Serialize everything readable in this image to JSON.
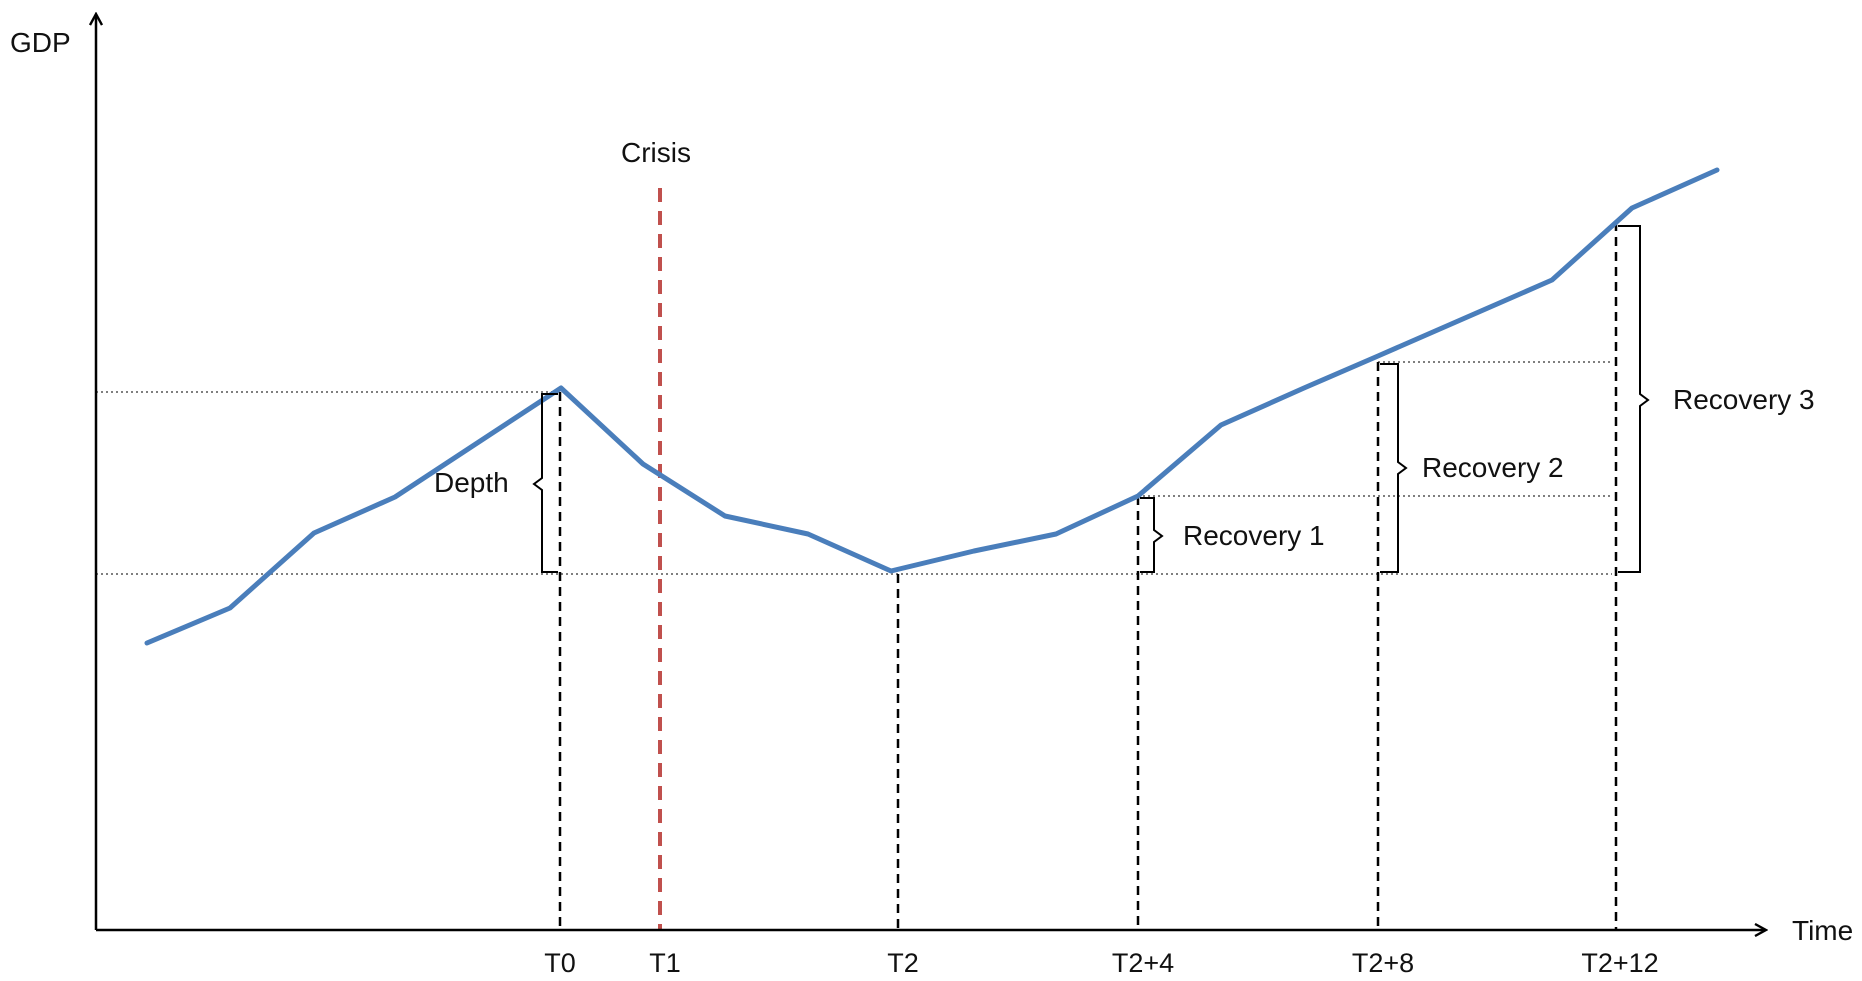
{
  "axes": {
    "y_label": "GDP",
    "x_label": "Time"
  },
  "ticks": [
    "T0",
    "T1",
    "T2",
    "T2+4",
    "T2+8",
    "T2+12"
  ],
  "annotations": {
    "crisis": "Crisis",
    "depth": "Depth",
    "recovery_1": "Recovery 1",
    "recovery_2": "Recovery 2",
    "recovery_3": "Recovery 3"
  },
  "colors": {
    "gdp_line": "#4a7ebb",
    "crisis_line": "#c0504d",
    "axis": "#000000",
    "reference_lines": "#7f7f7f"
  }
}
